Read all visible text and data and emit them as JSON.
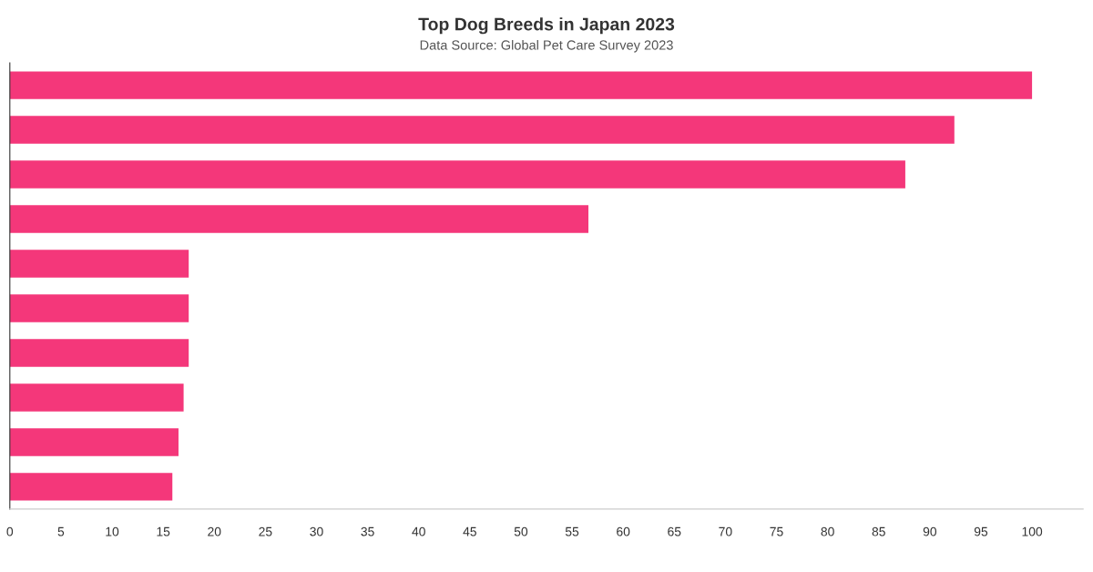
{
  "chart_data": {
    "type": "bar",
    "orientation": "horizontal",
    "title": "Top Dog Breeds in Japan 2023",
    "subtitle": "Data Source: Global Pet Care Survey 2023",
    "categories": [
      null,
      null,
      null,
      null,
      null,
      null,
      null,
      null,
      null,
      null
    ],
    "values": [
      100,
      92.4,
      87.6,
      56.6,
      17.5,
      17.5,
      17.5,
      17,
      16.5,
      15.9
    ],
    "color": "#f4377a",
    "xlim": [
      0,
      105
    ],
    "xticks": [
      0,
      5,
      10,
      15,
      20,
      25,
      30,
      35,
      40,
      45,
      50,
      55,
      60,
      65,
      70,
      75,
      80,
      85,
      90,
      95,
      100
    ],
    "grid": false,
    "legend": false
  }
}
